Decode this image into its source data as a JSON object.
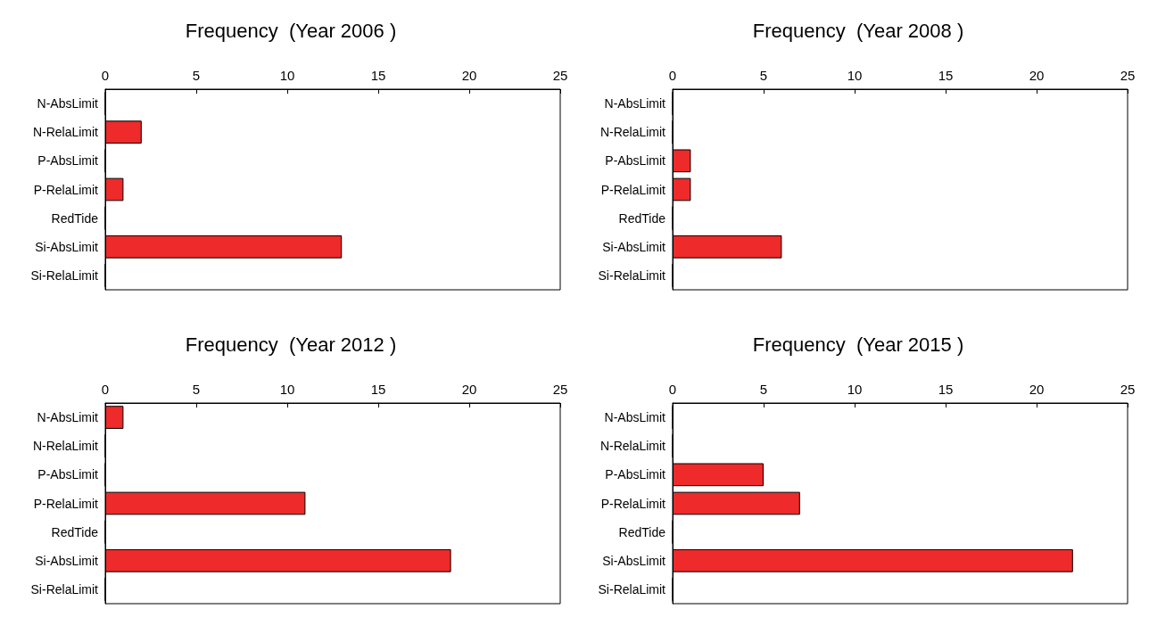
{
  "chart_data": [
    {
      "type": "bar",
      "orientation": "horizontal",
      "title": "Frequency  (Year 2006 )",
      "categories": [
        "N-AbsLimit",
        "N-RelaLimit",
        "P-AbsLimit",
        "P-RelaLimit",
        "RedTide",
        "Si-AbsLimit",
        "Si-RelaLimit"
      ],
      "values": [
        0,
        2,
        0,
        1,
        0,
        13,
        0
      ],
      "color": "#ee2a2a",
      "xlim": [
        0,
        25
      ],
      "xticks": [
        0,
        5,
        10,
        15,
        20,
        25
      ]
    },
    {
      "type": "bar",
      "orientation": "horizontal",
      "title": "Frequency  (Year 2008 )",
      "categories": [
        "N-AbsLimit",
        "N-RelaLimit",
        "P-AbsLimit",
        "P-RelaLimit",
        "RedTide",
        "Si-AbsLimit",
        "Si-RelaLimit"
      ],
      "values": [
        0,
        0,
        1,
        1,
        0,
        6,
        0
      ],
      "color": "#ee2a2a",
      "xlim": [
        0,
        25
      ],
      "xticks": [
        0,
        5,
        10,
        15,
        20,
        25
      ]
    },
    {
      "type": "bar",
      "orientation": "horizontal",
      "title": "Frequency  (Year 2012 )",
      "categories": [
        "N-AbsLimit",
        "N-RelaLimit",
        "P-AbsLimit",
        "P-RelaLimit",
        "RedTide",
        "Si-AbsLimit",
        "Si-RelaLimit"
      ],
      "values": [
        1,
        0,
        0,
        11,
        0,
        19,
        0
      ],
      "color": "#ee2a2a",
      "xlim": [
        0,
        25
      ],
      "xticks": [
        0,
        5,
        10,
        15,
        20,
        25
      ]
    },
    {
      "type": "bar",
      "orientation": "horizontal",
      "title": "Frequency  (Year 2015 )",
      "categories": [
        "N-AbsLimit",
        "N-RelaLimit",
        "P-AbsLimit",
        "P-RelaLimit",
        "RedTide",
        "Si-AbsLimit",
        "Si-RelaLimit"
      ],
      "values": [
        0,
        0,
        5,
        7,
        0,
        22,
        0
      ],
      "color": "#ee2a2a",
      "xlim": [
        0,
        25
      ],
      "xticks": [
        0,
        5,
        10,
        15,
        20,
        25
      ]
    }
  ]
}
